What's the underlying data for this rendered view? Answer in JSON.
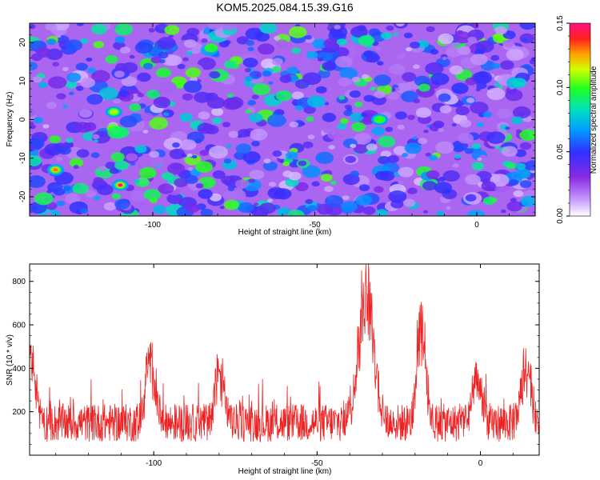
{
  "title": "KOM5.2025.084.15.39.G16",
  "chart_data": [
    {
      "type": "heatmap",
      "xlabel": "Height of straight line (km)",
      "ylabel": "Frequency (Hz)",
      "xlim": [
        -138,
        18
      ],
      "ylim": [
        -25,
        25
      ],
      "xticks": [
        -100,
        -50,
        0
      ],
      "xtick_labels": [
        "-100",
        "-50",
        "0"
      ],
      "yticks": [
        20,
        10,
        0,
        -10,
        -20
      ],
      "ytick_labels": [
        "20",
        "10",
        "0",
        "-10",
        "-20"
      ],
      "colorbar": {
        "label": "Normalized spectral amplitude",
        "range": [
          0.0,
          0.15
        ],
        "ticks": [
          0.0,
          0.05,
          0.1,
          0.15
        ],
        "tick_labels": [
          "0.00",
          "0.05",
          "0.10",
          "0.15"
        ],
        "colormap": "white-purple-blue-cyan-green-yellow-red-magenta"
      },
      "peak_cells": [
        {
          "x": -110,
          "y": -17,
          "value": 0.15
        },
        {
          "x": -130,
          "y": -13,
          "value": 0.13
        },
        {
          "x": -112,
          "y": 2,
          "value": 0.11
        },
        {
          "x": -30,
          "y": 0,
          "value": 0.1
        }
      ],
      "typical_value": 0.03
    },
    {
      "type": "line",
      "xlabel": "Height of straight line (km)",
      "ylabel": "SNR (10 * v/v)",
      "xlim": [
        -138,
        18
      ],
      "ylim": [
        0,
        880
      ],
      "xticks": [
        -100,
        -50,
        0
      ],
      "xtick_labels": [
        "-100",
        "-50",
        "0"
      ],
      "yticks": [
        200,
        400,
        600,
        800
      ],
      "ytick_labels": [
        "200",
        "400",
        "600",
        "800"
      ],
      "line_color": "#ee2222",
      "baseline": 140,
      "noise_amplitude": 110,
      "peaks": [
        {
          "x": -137.5,
          "y": 500
        },
        {
          "x": -101,
          "y": 520
        },
        {
          "x": -80,
          "y": 430
        },
        {
          "x": -35,
          "y": 880
        },
        {
          "x": -18,
          "y": 680
        },
        {
          "x": -1,
          "y": 380
        },
        {
          "x": 14,
          "y": 480
        }
      ]
    }
  ]
}
